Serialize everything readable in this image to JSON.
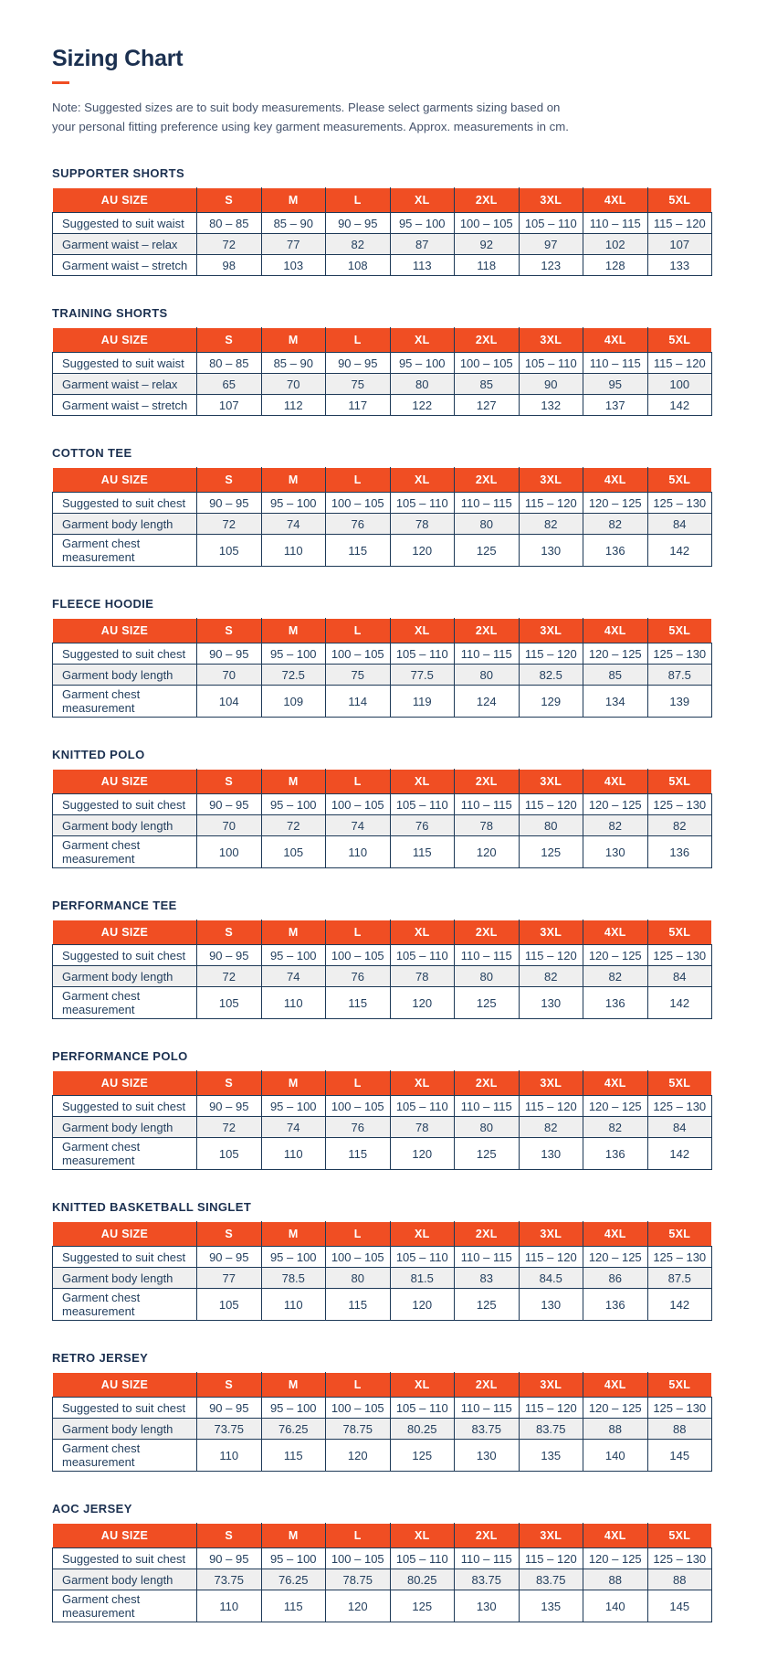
{
  "page": {
    "title": "Sizing Chart",
    "note_lines": [
      "Note: Suggested sizes are to suit body measurements. Please select garments sizing based on",
      "your personal fitting preference using key garment measurements. Approx. measurements in cm."
    ]
  },
  "colors": {
    "accent_orange": "#f04e23",
    "navy_text": "#1e3a58",
    "row_stripe": "#efefef"
  },
  "size_columns": [
    "AU SIZE",
    "S",
    "M",
    "L",
    "XL",
    "2XL",
    "3XL",
    "4XL",
    "5XL"
  ],
  "tables": [
    {
      "title": "SUPPORTER SHORTS",
      "rows": [
        {
          "label": "Suggested to suit waist",
          "values": [
            "80 – 85",
            "85 – 90",
            "90 – 95",
            "95 – 100",
            "100 – 105",
            "105 – 110",
            "110 – 115",
            "115 – 120"
          ]
        },
        {
          "label": "Garment waist – relax",
          "values": [
            "72",
            "77",
            "82",
            "87",
            "92",
            "97",
            "102",
            "107"
          ]
        },
        {
          "label": "Garment waist – stretch",
          "values": [
            "98",
            "103",
            "108",
            "113",
            "118",
            "123",
            "128",
            "133"
          ]
        }
      ]
    },
    {
      "title": "TRAINING SHORTS",
      "rows": [
        {
          "label": "Suggested to suit waist",
          "values": [
            "80 – 85",
            "85 – 90",
            "90 – 95",
            "95 – 100",
            "100 – 105",
            "105 – 110",
            "110 – 115",
            "115 – 120"
          ]
        },
        {
          "label": "Garment waist – relax",
          "values": [
            "65",
            "70",
            "75",
            "80",
            "85",
            "90",
            "95",
            "100"
          ]
        },
        {
          "label": "Garment waist – stretch",
          "values": [
            "107",
            "112",
            "117",
            "122",
            "127",
            "132",
            "137",
            "142"
          ]
        }
      ]
    },
    {
      "title": "COTTON TEE",
      "rows": [
        {
          "label": "Suggested to suit chest",
          "values": [
            "90 – 95",
            "95 – 100",
            "100 – 105",
            "105 – 110",
            "110 – 115",
            "115 – 120",
            "120 – 125",
            "125 – 130"
          ]
        },
        {
          "label": "Garment body length",
          "values": [
            "72",
            "74",
            "76",
            "78",
            "80",
            "82",
            "82",
            "84"
          ]
        },
        {
          "label": "Garment chest measurement",
          "values": [
            "105",
            "110",
            "115",
            "120",
            "125",
            "130",
            "136",
            "142"
          ]
        }
      ]
    },
    {
      "title": "FLEECE HOODIE",
      "rows": [
        {
          "label": "Suggested to suit chest",
          "values": [
            "90 – 95",
            "95 – 100",
            "100 – 105",
            "105 – 110",
            "110 – 115",
            "115 – 120",
            "120 – 125",
            "125 – 130"
          ]
        },
        {
          "label": "Garment body length",
          "values": [
            "70",
            "72.5",
            "75",
            "77.5",
            "80",
            "82.5",
            "85",
            "87.5"
          ]
        },
        {
          "label": "Garment chest measurement",
          "values": [
            "104",
            "109",
            "114",
            "119",
            "124",
            "129",
            "134",
            "139"
          ]
        }
      ]
    },
    {
      "title": "KNITTED POLO",
      "rows": [
        {
          "label": "Suggested to suit chest",
          "values": [
            "90 – 95",
            "95 – 100",
            "100 – 105",
            "105 – 110",
            "110 – 115",
            "115 – 120",
            "120 – 125",
            "125 – 130"
          ]
        },
        {
          "label": "Garment body length",
          "values": [
            "70",
            "72",
            "74",
            "76",
            "78",
            "80",
            "82",
            "82"
          ]
        },
        {
          "label": "Garment chest measurement",
          "values": [
            "100",
            "105",
            "110",
            "115",
            "120",
            "125",
            "130",
            "136"
          ]
        }
      ]
    },
    {
      "title": "PERFORMANCE TEE",
      "rows": [
        {
          "label": "Suggested to suit chest",
          "values": [
            "90 – 95",
            "95 – 100",
            "100 – 105",
            "105 – 110",
            "110 – 115",
            "115 – 120",
            "120 – 125",
            "125 – 130"
          ]
        },
        {
          "label": "Garment body length",
          "values": [
            "72",
            "74",
            "76",
            "78",
            "80",
            "82",
            "82",
            "84"
          ]
        },
        {
          "label": "Garment chest measurement",
          "values": [
            "105",
            "110",
            "115",
            "120",
            "125",
            "130",
            "136",
            "142"
          ]
        }
      ]
    },
    {
      "title": "PERFORMANCE POLO",
      "rows": [
        {
          "label": "Suggested to suit chest",
          "values": [
            "90 – 95",
            "95 – 100",
            "100 – 105",
            "105 – 110",
            "110 – 115",
            "115 – 120",
            "120 – 125",
            "125 – 130"
          ]
        },
        {
          "label": "Garment body length",
          "values": [
            "72",
            "74",
            "76",
            "78",
            "80",
            "82",
            "82",
            "84"
          ]
        },
        {
          "label": "Garment chest measurement",
          "values": [
            "105",
            "110",
            "115",
            "120",
            "125",
            "130",
            "136",
            "142"
          ]
        }
      ]
    },
    {
      "title": "KNITTED BASKETBALL SINGLET",
      "rows": [
        {
          "label": "Suggested to suit chest",
          "values": [
            "90 – 95",
            "95 – 100",
            "100 – 105",
            "105 – 110",
            "110 – 115",
            "115 – 120",
            "120 – 125",
            "125 – 130"
          ]
        },
        {
          "label": "Garment body length",
          "values": [
            "77",
            "78.5",
            "80",
            "81.5",
            "83",
            "84.5",
            "86",
            "87.5"
          ]
        },
        {
          "label": "Garment chest measurement",
          "values": [
            "105",
            "110",
            "115",
            "120",
            "125",
            "130",
            "136",
            "142"
          ]
        }
      ]
    },
    {
      "title": "RETRO JERSEY",
      "rows": [
        {
          "label": "Suggested to suit chest",
          "values": [
            "90 – 95",
            "95 – 100",
            "100 – 105",
            "105 – 110",
            "110 – 115",
            "115 – 120",
            "120 – 125",
            "125 – 130"
          ]
        },
        {
          "label": "Garment body length",
          "values": [
            "73.75",
            "76.25",
            "78.75",
            "80.25",
            "83.75",
            "83.75",
            "88",
            "88"
          ]
        },
        {
          "label": "Garment chest measurement",
          "values": [
            "110",
            "115",
            "120",
            "125",
            "130",
            "135",
            "140",
            "145"
          ]
        }
      ]
    },
    {
      "title": "AOC JERSEY",
      "rows": [
        {
          "label": "Suggested to suit chest",
          "values": [
            "90 – 95",
            "95 – 100",
            "100 – 105",
            "105 – 110",
            "110 – 115",
            "115 – 120",
            "120 – 125",
            "125 – 130"
          ]
        },
        {
          "label": "Garment body length",
          "values": [
            "73.75",
            "76.25",
            "78.75",
            "80.25",
            "83.75",
            "83.75",
            "88",
            "88"
          ]
        },
        {
          "label": "Garment chest measurement",
          "values": [
            "110",
            "115",
            "120",
            "125",
            "130",
            "135",
            "140",
            "145"
          ]
        }
      ]
    }
  ]
}
